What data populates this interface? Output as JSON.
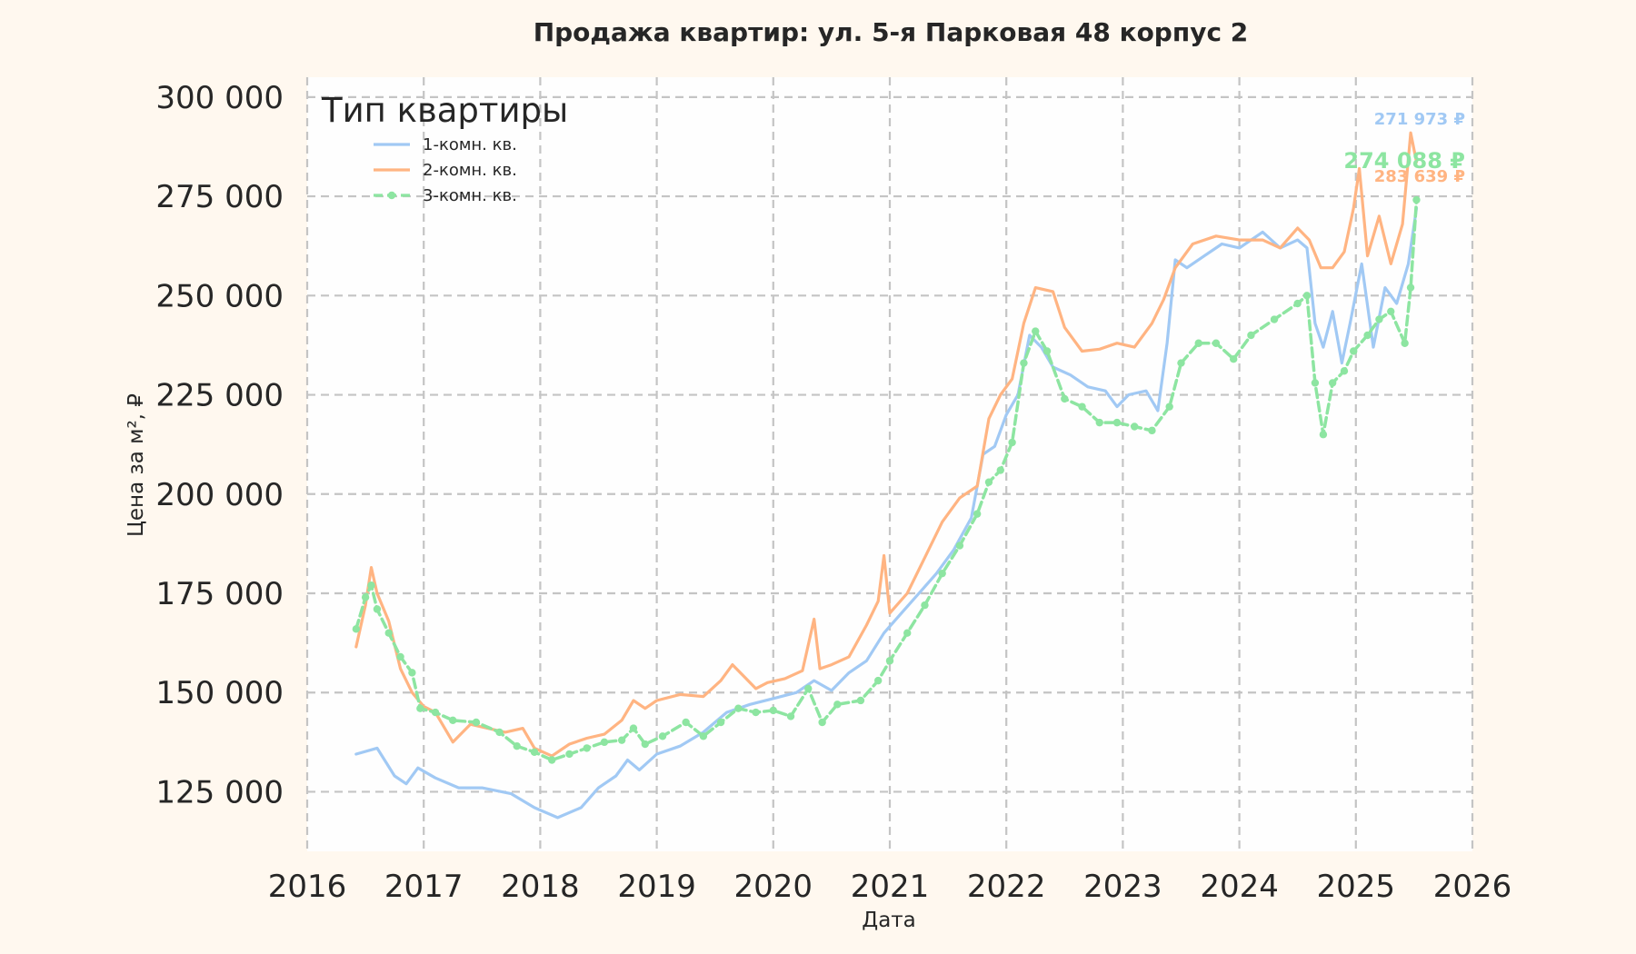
{
  "chart_data": {
    "type": "line",
    "title": "Продажа квартир: ул. 5-я Парковая 48 корпус 2",
    "xlabel": "Дата",
    "ylabel": "Цена за м², ₽",
    "xlim": [
      2016.0,
      2026.0
    ],
    "ylim": [
      110000,
      305000
    ],
    "x_ticks": [
      "2016",
      "2017",
      "2018",
      "2019",
      "2020",
      "2021",
      "2022",
      "2023",
      "2024",
      "2025",
      "2026"
    ],
    "y_ticks": [
      "125 000",
      "150 000",
      "175 000",
      "200 000",
      "225 000",
      "250 000",
      "275 000",
      "300 000"
    ],
    "grid": true,
    "legend": {
      "title": "Тип квартиры",
      "placement": "top-left"
    },
    "series": [
      {
        "name": "1-комн. кв.",
        "color": "#a1c9f4",
        "style": "solid",
        "end_label": "271 973 ₽",
        "points": [
          [
            2016.42,
            134500
          ],
          [
            2016.6,
            136000
          ],
          [
            2016.75,
            129000
          ],
          [
            2016.85,
            127000
          ],
          [
            2016.95,
            131000
          ],
          [
            2017.1,
            128500
          ],
          [
            2017.3,
            126000
          ],
          [
            2017.5,
            126000
          ],
          [
            2017.75,
            124500
          ],
          [
            2017.95,
            121000
          ],
          [
            2018.15,
            118500
          ],
          [
            2018.35,
            121000
          ],
          [
            2018.5,
            126000
          ],
          [
            2018.65,
            129000
          ],
          [
            2018.75,
            133000
          ],
          [
            2018.85,
            130500
          ],
          [
            2019.0,
            134500
          ],
          [
            2019.2,
            136500
          ],
          [
            2019.4,
            140000
          ],
          [
            2019.6,
            145000
          ],
          [
            2019.8,
            147000
          ],
          [
            2020.0,
            148500
          ],
          [
            2020.2,
            150000
          ],
          [
            2020.35,
            153000
          ],
          [
            2020.5,
            150500
          ],
          [
            2020.65,
            155000
          ],
          [
            2020.8,
            158000
          ],
          [
            2020.95,
            165000
          ],
          [
            2021.1,
            170000
          ],
          [
            2021.25,
            175000
          ],
          [
            2021.4,
            180000
          ],
          [
            2021.55,
            186000
          ],
          [
            2021.7,
            194000
          ],
          [
            2021.8,
            210000
          ],
          [
            2021.9,
            212000
          ],
          [
            2022.0,
            220000
          ],
          [
            2022.1,
            225000
          ],
          [
            2022.2,
            240000
          ],
          [
            2022.3,
            237000
          ],
          [
            2022.4,
            232000
          ],
          [
            2022.55,
            230000
          ],
          [
            2022.7,
            227000
          ],
          [
            2022.85,
            226000
          ],
          [
            2022.95,
            222000
          ],
          [
            2023.05,
            225000
          ],
          [
            2023.2,
            226000
          ],
          [
            2023.3,
            221000
          ],
          [
            2023.38,
            238000
          ],
          [
            2023.45,
            259000
          ],
          [
            2023.55,
            257000
          ],
          [
            2023.7,
            260000
          ],
          [
            2023.85,
            263000
          ],
          [
            2024.0,
            262000
          ],
          [
            2024.2,
            266000
          ],
          [
            2024.35,
            262000
          ],
          [
            2024.5,
            264000
          ],
          [
            2024.58,
            262000
          ],
          [
            2024.65,
            243000
          ],
          [
            2024.72,
            237000
          ],
          [
            2024.8,
            246000
          ],
          [
            2024.88,
            233000
          ],
          [
            2024.95,
            243000
          ],
          [
            2025.05,
            258000
          ],
          [
            2025.15,
            237000
          ],
          [
            2025.25,
            252000
          ],
          [
            2025.35,
            248000
          ],
          [
            2025.45,
            258000
          ],
          [
            2025.52,
            272000
          ]
        ]
      },
      {
        "name": "2-комн. кв.",
        "color": "#ffb482",
        "style": "solid",
        "end_label": "283 639 ₽",
        "points": [
          [
            2016.42,
            161500
          ],
          [
            2016.5,
            172000
          ],
          [
            2016.55,
            181500
          ],
          [
            2016.6,
            175000
          ],
          [
            2016.7,
            168000
          ],
          [
            2016.8,
            156000
          ],
          [
            2016.9,
            150000
          ],
          [
            2017.0,
            146500
          ],
          [
            2017.1,
            145000
          ],
          [
            2017.25,
            137500
          ],
          [
            2017.4,
            142000
          ],
          [
            2017.55,
            141000
          ],
          [
            2017.7,
            140000
          ],
          [
            2017.85,
            141000
          ],
          [
            2017.95,
            136000
          ],
          [
            2018.1,
            134000
          ],
          [
            2018.25,
            137000
          ],
          [
            2018.4,
            138500
          ],
          [
            2018.55,
            139500
          ],
          [
            2018.7,
            143000
          ],
          [
            2018.8,
            148000
          ],
          [
            2018.9,
            146000
          ],
          [
            2019.0,
            148000
          ],
          [
            2019.2,
            149500
          ],
          [
            2019.4,
            149000
          ],
          [
            2019.55,
            153000
          ],
          [
            2019.65,
            157000
          ],
          [
            2019.75,
            154000
          ],
          [
            2019.85,
            151000
          ],
          [
            2019.95,
            152500
          ],
          [
            2020.1,
            153500
          ],
          [
            2020.25,
            155500
          ],
          [
            2020.35,
            168500
          ],
          [
            2020.4,
            156000
          ],
          [
            2020.5,
            157000
          ],
          [
            2020.65,
            159000
          ],
          [
            2020.8,
            167000
          ],
          [
            2020.9,
            173000
          ],
          [
            2020.95,
            184500
          ],
          [
            2021.0,
            170000
          ],
          [
            2021.15,
            175000
          ],
          [
            2021.3,
            184000
          ],
          [
            2021.45,
            193000
          ],
          [
            2021.6,
            199000
          ],
          [
            2021.75,
            202000
          ],
          [
            2021.85,
            219000
          ],
          [
            2021.95,
            225000
          ],
          [
            2022.05,
            229000
          ],
          [
            2022.15,
            243000
          ],
          [
            2022.25,
            252000
          ],
          [
            2022.4,
            251000
          ],
          [
            2022.5,
            242000
          ],
          [
            2022.65,
            236000
          ],
          [
            2022.8,
            236500
          ],
          [
            2022.95,
            238000
          ],
          [
            2023.1,
            237000
          ],
          [
            2023.25,
            243000
          ],
          [
            2023.35,
            249000
          ],
          [
            2023.45,
            257000
          ],
          [
            2023.6,
            263000
          ],
          [
            2023.8,
            265000
          ],
          [
            2024.0,
            264000
          ],
          [
            2024.2,
            264000
          ],
          [
            2024.35,
            262000
          ],
          [
            2024.5,
            267000
          ],
          [
            2024.6,
            264000
          ],
          [
            2024.7,
            257000
          ],
          [
            2024.8,
            257000
          ],
          [
            2024.9,
            261000
          ],
          [
            2024.98,
            272000
          ],
          [
            2025.03,
            282000
          ],
          [
            2025.1,
            260000
          ],
          [
            2025.2,
            270000
          ],
          [
            2025.3,
            258000
          ],
          [
            2025.4,
            268000
          ],
          [
            2025.47,
            291000
          ],
          [
            2025.52,
            283639
          ]
        ]
      },
      {
        "name": "3-комн. кв.",
        "color": "#8de5a1",
        "style": "dashed-markers",
        "end_label": "274 088 ₽",
        "points": [
          [
            2016.42,
            166000
          ],
          [
            2016.5,
            174000
          ],
          [
            2016.55,
            177000
          ],
          [
            2016.6,
            171000
          ],
          [
            2016.7,
            165000
          ],
          [
            2016.8,
            159000
          ],
          [
            2016.9,
            155000
          ],
          [
            2016.97,
            146000
          ],
          [
            2017.1,
            145000
          ],
          [
            2017.25,
            143000
          ],
          [
            2017.45,
            142500
          ],
          [
            2017.65,
            140000
          ],
          [
            2017.8,
            136500
          ],
          [
            2017.95,
            135000
          ],
          [
            2018.1,
            133000
          ],
          [
            2018.25,
            134500
          ],
          [
            2018.4,
            136000
          ],
          [
            2018.55,
            137500
          ],
          [
            2018.7,
            138000
          ],
          [
            2018.8,
            141000
          ],
          [
            2018.9,
            137000
          ],
          [
            2019.05,
            139000
          ],
          [
            2019.25,
            142500
          ],
          [
            2019.4,
            139000
          ],
          [
            2019.55,
            142500
          ],
          [
            2019.7,
            146000
          ],
          [
            2019.85,
            145000
          ],
          [
            2020.0,
            145500
          ],
          [
            2020.15,
            144000
          ],
          [
            2020.3,
            151000
          ],
          [
            2020.42,
            142500
          ],
          [
            2020.55,
            147000
          ],
          [
            2020.75,
            148000
          ],
          [
            2020.9,
            153000
          ],
          [
            2021.0,
            158000
          ],
          [
            2021.15,
            165000
          ],
          [
            2021.3,
            172000
          ],
          [
            2021.45,
            180000
          ],
          [
            2021.6,
            187000
          ],
          [
            2021.75,
            195000
          ],
          [
            2021.85,
            203000
          ],
          [
            2021.95,
            206000
          ],
          [
            2022.05,
            213000
          ],
          [
            2022.15,
            233000
          ],
          [
            2022.25,
            241000
          ],
          [
            2022.35,
            236000
          ],
          [
            2022.5,
            224000
          ],
          [
            2022.65,
            222000
          ],
          [
            2022.8,
            218000
          ],
          [
            2022.95,
            218000
          ],
          [
            2023.1,
            217000
          ],
          [
            2023.25,
            216000
          ],
          [
            2023.4,
            222000
          ],
          [
            2023.5,
            233000
          ],
          [
            2023.65,
            238000
          ],
          [
            2023.8,
            238000
          ],
          [
            2023.95,
            234000
          ],
          [
            2024.1,
            240000
          ],
          [
            2024.3,
            244000
          ],
          [
            2024.5,
            248000
          ],
          [
            2024.58,
            250000
          ],
          [
            2024.65,
            228000
          ],
          [
            2024.72,
            215000
          ],
          [
            2024.8,
            228000
          ],
          [
            2024.9,
            231000
          ],
          [
            2024.98,
            236000
          ],
          [
            2025.1,
            240000
          ],
          [
            2025.2,
            244000
          ],
          [
            2025.3,
            246000
          ],
          [
            2025.42,
            238000
          ],
          [
            2025.47,
            252000
          ],
          [
            2025.52,
            274088
          ]
        ]
      }
    ]
  }
}
